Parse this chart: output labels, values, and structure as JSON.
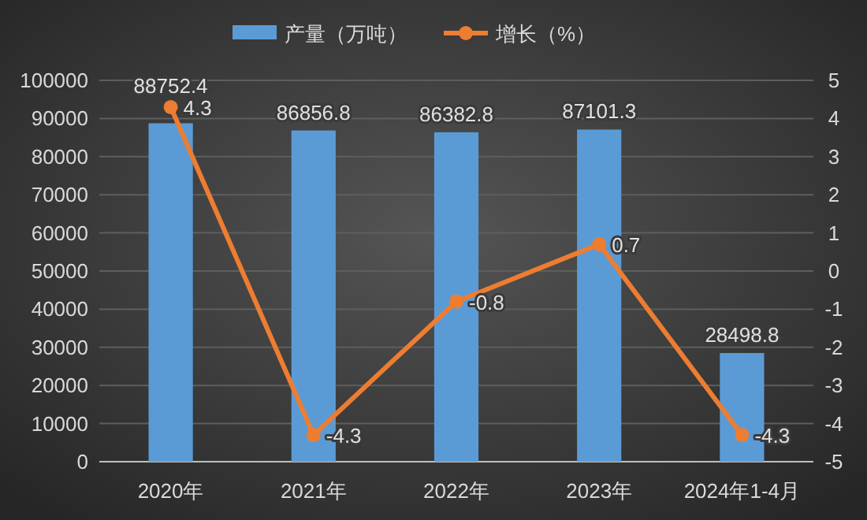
{
  "chart_data": {
    "type": "bar",
    "categories": [
      "2020年",
      "2021年",
      "2022年",
      "2023年",
      "2024年1-4月"
    ],
    "series": [
      {
        "name": "产量（万吨）",
        "color": "#5b9bd5",
        "values": [
          88752.4,
          86856.8,
          86382.8,
          87101.3,
          28498.8
        ]
      },
      {
        "name": "增长（%）",
        "type": "line",
        "axis": "y2",
        "color": "#ed7d31",
        "values": [
          4.3,
          -4.3,
          -0.8,
          0.7,
          -4.3
        ]
      }
    ],
    "ylim": [
      0,
      100000
    ],
    "yticks": [
      0,
      10000,
      20000,
      30000,
      40000,
      50000,
      60000,
      70000,
      80000,
      90000,
      100000
    ],
    "y2lim": [
      -5,
      5
    ],
    "y2ticks": [
      -5,
      -4,
      -3,
      -2,
      -1,
      0,
      1,
      2,
      3,
      4,
      5
    ],
    "grid": "y",
    "legend": "top",
    "marker": "circle",
    "data_labels": true
  }
}
